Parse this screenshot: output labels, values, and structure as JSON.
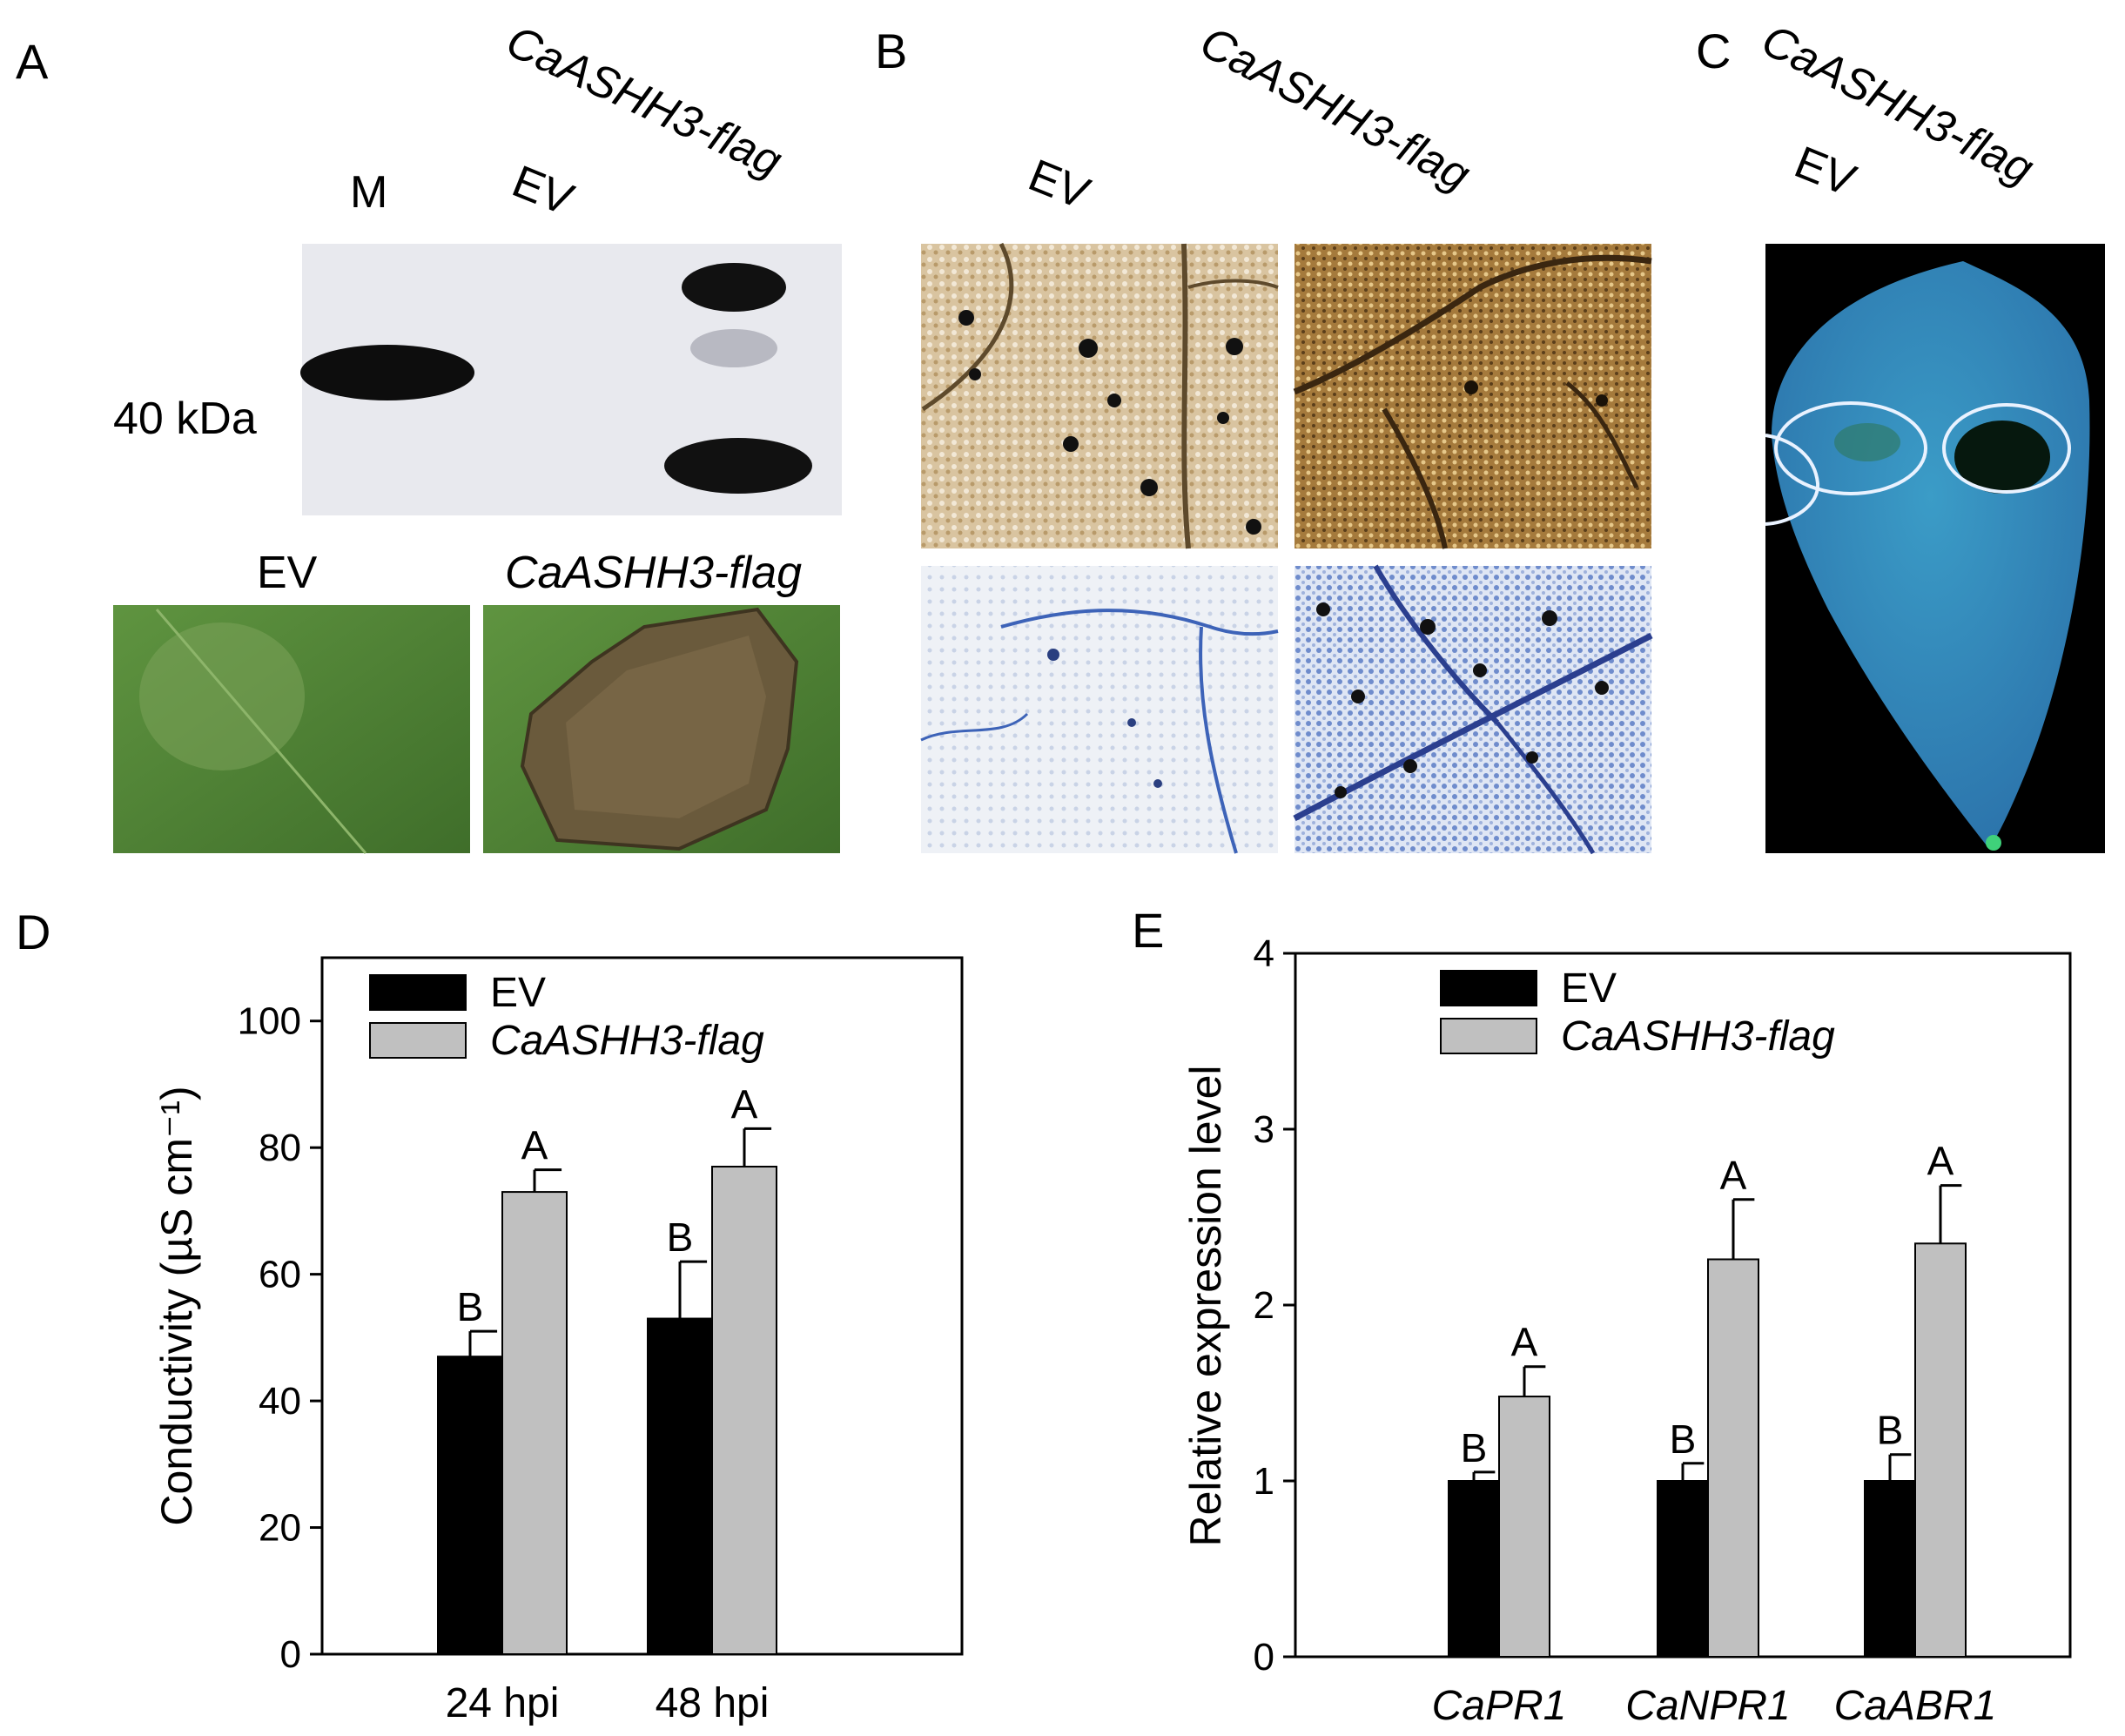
{
  "panels": {
    "A": {
      "letter": "A",
      "blot": {
        "lane_labels": [
          "M",
          "EV",
          "CaASHH3-flag"
        ],
        "size_marker": "40 kDa"
      },
      "leaf_labels": [
        "EV",
        "CaASHH3-flag"
      ]
    },
    "B": {
      "letter": "B",
      "column_labels": [
        "EV",
        "CaASHH3-flag"
      ]
    },
    "C": {
      "letter": "C",
      "labels": [
        "CaASHH3-flag",
        "EV"
      ]
    },
    "D": {
      "letter": "D"
    },
    "E": {
      "letter": "E"
    }
  },
  "colors": {
    "ev": "#000000",
    "flag": "#c0c0c0",
    "leaf_green": "#5b8a3a",
    "gus_blue": "#3d63b8",
    "dab_brown": "#8c6a3a",
    "fluor_blue": "#2e8ab8"
  },
  "chart_data": [
    {
      "type": "bar",
      "panel": "D",
      "categories": [
        "24 hpi",
        "48 hpi"
      ],
      "series": [
        {
          "name": "EV",
          "values": [
            47,
            53
          ],
          "errors": [
            4,
            9
          ],
          "letters": [
            "B",
            "B"
          ]
        },
        {
          "name": "CaASHH3-flag",
          "values": [
            73,
            77
          ],
          "errors": [
            3.5,
            6
          ],
          "letters": [
            "A",
            "A"
          ]
        }
      ],
      "ylabel": "Conductivity (µS cm⁻¹)",
      "ylim": [
        0,
        110
      ],
      "yticks": [
        0,
        20,
        40,
        60,
        80,
        100
      ],
      "legend": "top-left",
      "grid": false
    },
    {
      "type": "bar",
      "panel": "E",
      "categories": [
        "CaPR1",
        "CaNPR1",
        "CaABR1"
      ],
      "series": [
        {
          "name": "EV",
          "values": [
            1.0,
            1.0,
            1.0
          ],
          "errors": [
            0.05,
            0.1,
            0.15
          ],
          "letters": [
            "B",
            "B",
            "B"
          ]
        },
        {
          "name": "CaASHH3-flag",
          "values": [
            1.48,
            2.26,
            2.35
          ],
          "errors": [
            0.17,
            0.34,
            0.33
          ],
          "letters": [
            "A",
            "A",
            "A"
          ]
        }
      ],
      "ylabel": "Relative expression level",
      "ylim": [
        0,
        4
      ],
      "yticks": [
        0,
        1,
        2,
        3,
        4
      ],
      "legend": "top-left",
      "grid": false
    }
  ]
}
